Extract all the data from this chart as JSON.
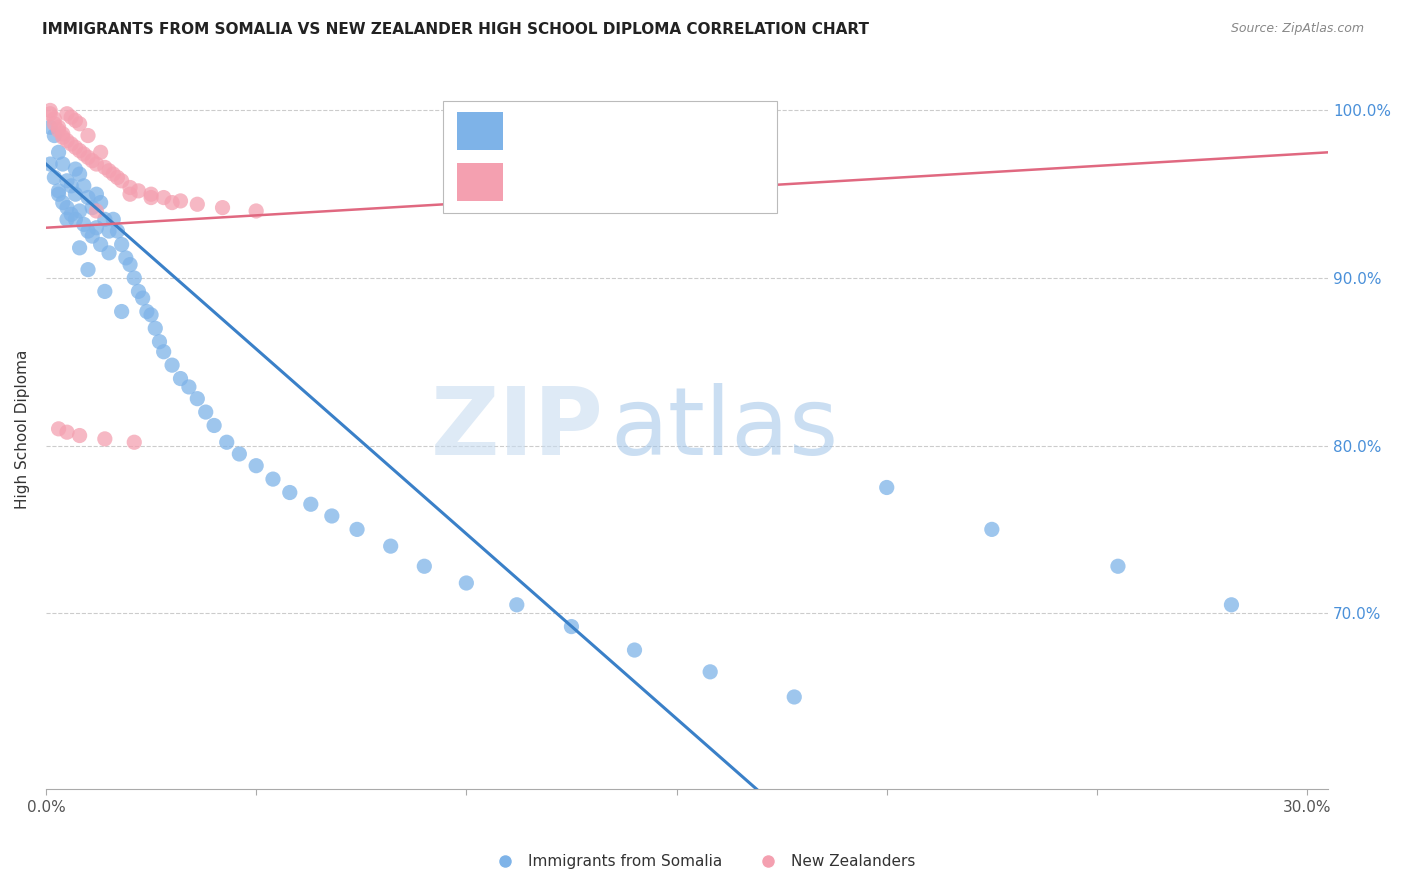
{
  "title": "IMMIGRANTS FROM SOMALIA VS NEW ZEALANDER HIGH SCHOOL DIPLOMA CORRELATION CHART",
  "source": "Source: ZipAtlas.com",
  "ylabel": "High School Diploma",
  "xlim": [
    0.0,
    0.305
  ],
  "ylim": [
    0.595,
    1.025
  ],
  "xticks": [
    0.0,
    0.05,
    0.1,
    0.15,
    0.2,
    0.25,
    0.3
  ],
  "xtick_labels": [
    "0.0%",
    "",
    "",
    "",
    "",
    "",
    "30.0%"
  ],
  "ytick_labels_right": [
    "100.0%",
    "90.0%",
    "80.0%",
    "70.0%"
  ],
  "yticks": [
    1.0,
    0.9,
    0.8,
    0.7
  ],
  "color_blue": "#7EB3E8",
  "color_pink": "#F4A0B0",
  "color_blue_line": "#3A80C8",
  "color_pink_line": "#E06880",
  "watermark_zip": "ZIP",
  "watermark_atlas": "atlas",
  "blue_line_x": [
    0.0,
    0.305
  ],
  "blue_line_y": [
    0.968,
    0.295
  ],
  "pink_line_x": [
    0.0,
    0.305
  ],
  "pink_line_y": [
    0.93,
    0.975
  ],
  "blue_scatter_x": [
    0.001,
    0.002,
    0.002,
    0.003,
    0.003,
    0.004,
    0.004,
    0.005,
    0.005,
    0.006,
    0.006,
    0.007,
    0.007,
    0.007,
    0.008,
    0.008,
    0.009,
    0.009,
    0.01,
    0.01,
    0.011,
    0.011,
    0.012,
    0.012,
    0.013,
    0.013,
    0.014,
    0.015,
    0.015,
    0.016,
    0.017,
    0.018,
    0.019,
    0.02,
    0.021,
    0.022,
    0.023,
    0.024,
    0.025,
    0.026,
    0.027,
    0.028,
    0.03,
    0.032,
    0.034,
    0.036,
    0.038,
    0.04,
    0.043,
    0.046,
    0.05,
    0.054,
    0.058,
    0.063,
    0.068,
    0.074,
    0.082,
    0.09,
    0.1,
    0.112,
    0.125,
    0.14,
    0.158,
    0.178,
    0.2,
    0.225,
    0.255,
    0.282,
    0.001,
    0.003,
    0.005,
    0.008,
    0.01,
    0.014,
    0.018
  ],
  "blue_scatter_y": [
    0.99,
    0.985,
    0.96,
    0.975,
    0.952,
    0.968,
    0.945,
    0.958,
    0.942,
    0.955,
    0.938,
    0.965,
    0.95,
    0.935,
    0.962,
    0.94,
    0.955,
    0.932,
    0.948,
    0.928,
    0.942,
    0.925,
    0.95,
    0.93,
    0.945,
    0.92,
    0.935,
    0.928,
    0.915,
    0.935,
    0.928,
    0.92,
    0.912,
    0.908,
    0.9,
    0.892,
    0.888,
    0.88,
    0.878,
    0.87,
    0.862,
    0.856,
    0.848,
    0.84,
    0.835,
    0.828,
    0.82,
    0.812,
    0.802,
    0.795,
    0.788,
    0.78,
    0.772,
    0.765,
    0.758,
    0.75,
    0.74,
    0.728,
    0.718,
    0.705,
    0.692,
    0.678,
    0.665,
    0.65,
    0.775,
    0.75,
    0.728,
    0.705,
    0.968,
    0.95,
    0.935,
    0.918,
    0.905,
    0.892,
    0.88
  ],
  "pink_scatter_x": [
    0.001,
    0.001,
    0.002,
    0.002,
    0.003,
    0.003,
    0.004,
    0.004,
    0.005,
    0.005,
    0.006,
    0.006,
    0.007,
    0.007,
    0.008,
    0.008,
    0.009,
    0.01,
    0.01,
    0.011,
    0.012,
    0.013,
    0.014,
    0.015,
    0.016,
    0.017,
    0.018,
    0.02,
    0.022,
    0.025,
    0.028,
    0.032,
    0.036,
    0.042,
    0.05,
    0.012,
    0.02,
    0.025,
    0.03,
    0.003,
    0.005,
    0.008,
    0.014,
    0.021
  ],
  "pink_scatter_y": [
    1.0,
    0.998,
    0.995,
    0.992,
    0.99,
    0.988,
    0.986,
    0.984,
    0.998,
    0.982,
    0.996,
    0.98,
    0.994,
    0.978,
    0.992,
    0.976,
    0.974,
    0.972,
    0.985,
    0.97,
    0.968,
    0.975,
    0.966,
    0.964,
    0.962,
    0.96,
    0.958,
    0.954,
    0.952,
    0.95,
    0.948,
    0.946,
    0.944,
    0.942,
    0.94,
    0.94,
    0.95,
    0.948,
    0.945,
    0.81,
    0.808,
    0.806,
    0.804,
    0.802
  ]
}
